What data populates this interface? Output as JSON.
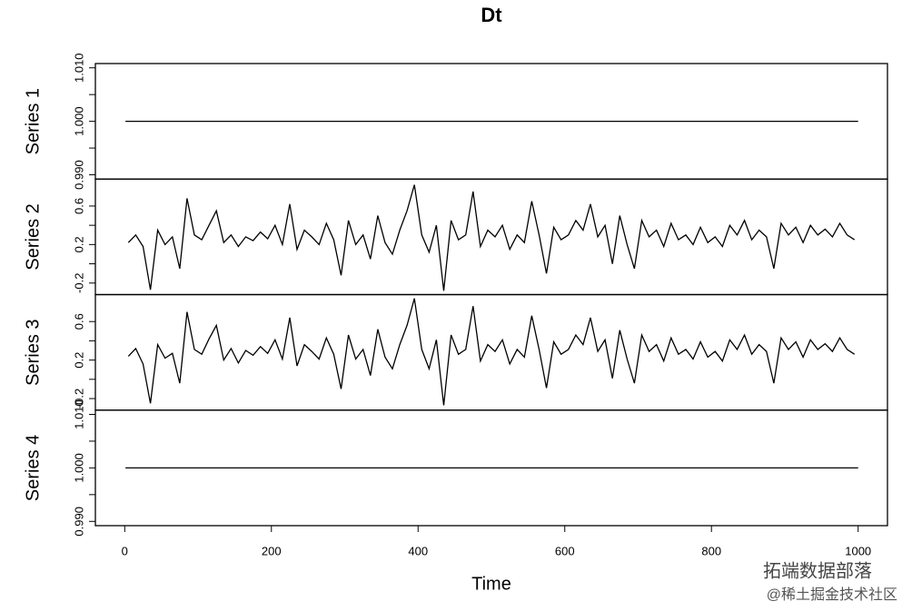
{
  "chart_data": {
    "type": "line",
    "title": "Dt",
    "x_label": "Time",
    "xlim": [
      -40,
      1040
    ],
    "xticks": [
      0,
      200,
      400,
      600,
      800,
      1000
    ],
    "panels": [
      {
        "y_label": "Series 1",
        "color": "#000000",
        "ylim": [
          0.9892,
          1.0108
        ],
        "yticks": [
          {
            "value": 0.99,
            "label": "0.990"
          },
          {
            "value": 1.0,
            "label": "1.000"
          },
          {
            "value": 1.01,
            "label": "1.010"
          }
        ],
        "yminor": [
          0.995,
          1.005
        ],
        "x": [
          1,
          1000
        ],
        "values": [
          1,
          1
        ]
      },
      {
        "y_label": "Series 2",
        "color": "#000000",
        "ylim": [
          -0.32,
          0.88
        ],
        "yticks": [
          -0.2,
          0.2,
          0.6
        ],
        "yminor": [
          0,
          0.4
        ],
        "x": [
          5,
          15,
          25,
          35,
          45,
          55,
          65,
          75,
          85,
          95,
          105,
          115,
          125,
          135,
          145,
          155,
          165,
          175,
          185,
          195,
          205,
          215,
          225,
          235,
          245,
          255,
          265,
          275,
          285,
          295,
          305,
          315,
          325,
          335,
          345,
          355,
          365,
          375,
          385,
          395,
          405,
          415,
          425,
          435,
          445,
          455,
          465,
          475,
          485,
          495,
          505,
          515,
          525,
          535,
          545,
          555,
          565,
          575,
          585,
          595,
          605,
          615,
          625,
          635,
          645,
          655,
          665,
          675,
          685,
          695,
          705,
          715,
          725,
          735,
          745,
          755,
          765,
          775,
          785,
          795,
          805,
          815,
          825,
          835,
          845,
          855,
          865,
          875,
          885,
          895,
          905,
          915,
          925,
          935,
          945,
          955,
          965,
          975,
          985,
          995
        ],
        "values": [
          0.22,
          0.3,
          0.18,
          -0.27,
          0.35,
          0.2,
          0.28,
          -0.05,
          0.68,
          0.3,
          0.25,
          0.4,
          0.55,
          0.22,
          0.3,
          0.18,
          0.28,
          0.24,
          0.33,
          0.26,
          0.4,
          0.2,
          0.62,
          0.15,
          0.35,
          0.28,
          0.2,
          0.42,
          0.25,
          -0.12,
          0.45,
          0.2,
          0.3,
          0.05,
          0.5,
          0.22,
          0.1,
          0.35,
          0.55,
          0.82,
          0.3,
          0.12,
          0.4,
          -0.28,
          0.45,
          0.25,
          0.3,
          0.75,
          0.18,
          0.35,
          0.28,
          0.4,
          0.15,
          0.3,
          0.22,
          0.65,
          0.3,
          -0.1,
          0.38,
          0.25,
          0.3,
          0.45,
          0.35,
          0.62,
          0.28,
          0.4,
          0.0,
          0.5,
          0.2,
          -0.05,
          0.45,
          0.28,
          0.35,
          0.18,
          0.42,
          0.25,
          0.3,
          0.2,
          0.38,
          0.22,
          0.28,
          0.18,
          0.4,
          0.3,
          0.45,
          0.25,
          0.35,
          0.28,
          -0.05,
          0.42,
          0.3,
          0.38,
          0.22,
          0.4,
          0.3,
          0.36,
          0.28,
          0.42,
          0.3,
          0.25
        ]
      },
      {
        "y_label": "Series 3",
        "color": "#000000",
        "ylim": [
          -0.32,
          0.88
        ],
        "yticks": [
          -0.2,
          0.2,
          0.6
        ],
        "yminor": [
          0,
          0.4
        ],
        "x": [
          5,
          15,
          25,
          35,
          45,
          55,
          65,
          75,
          85,
          95,
          105,
          115,
          125,
          135,
          145,
          155,
          165,
          175,
          185,
          195,
          205,
          215,
          225,
          235,
          245,
          255,
          265,
          275,
          285,
          295,
          305,
          315,
          325,
          335,
          345,
          355,
          365,
          375,
          385,
          395,
          405,
          415,
          425,
          435,
          445,
          455,
          465,
          475,
          485,
          495,
          505,
          515,
          525,
          535,
          545,
          555,
          565,
          575,
          585,
          595,
          605,
          615,
          625,
          635,
          645,
          655,
          665,
          675,
          685,
          695,
          705,
          715,
          725,
          735,
          745,
          755,
          765,
          775,
          785,
          795,
          805,
          815,
          825,
          835,
          845,
          855,
          865,
          875,
          885,
          895,
          905,
          915,
          925,
          935,
          945,
          955,
          965,
          975,
          985,
          995
        ],
        "values": [
          0.24,
          0.32,
          0.16,
          -0.25,
          0.36,
          0.22,
          0.27,
          -0.04,
          0.7,
          0.31,
          0.26,
          0.42,
          0.56,
          0.2,
          0.32,
          0.17,
          0.3,
          0.25,
          0.34,
          0.27,
          0.41,
          0.21,
          0.64,
          0.14,
          0.36,
          0.29,
          0.21,
          0.43,
          0.26,
          -0.1,
          0.46,
          0.21,
          0.31,
          0.04,
          0.52,
          0.23,
          0.11,
          0.36,
          0.56,
          0.84,
          0.31,
          0.11,
          0.41,
          -0.27,
          0.46,
          0.26,
          0.31,
          0.76,
          0.19,
          0.36,
          0.29,
          0.41,
          0.16,
          0.31,
          0.23,
          0.66,
          0.31,
          -0.09,
          0.39,
          0.26,
          0.31,
          0.46,
          0.36,
          0.64,
          0.29,
          0.41,
          0.01,
          0.51,
          0.21,
          -0.04,
          0.46,
          0.29,
          0.36,
          0.19,
          0.43,
          0.26,
          0.31,
          0.21,
          0.39,
          0.23,
          0.29,
          0.19,
          0.41,
          0.31,
          0.46,
          0.26,
          0.36,
          0.29,
          -0.04,
          0.43,
          0.31,
          0.39,
          0.23,
          0.41,
          0.31,
          0.37,
          0.29,
          0.43,
          0.31,
          0.26
        ]
      },
      {
        "y_label": "Series 4",
        "color": "#000000",
        "ylim": [
          0.9892,
          1.0108
        ],
        "yticks": [
          {
            "value": 0.99,
            "label": "0.990"
          },
          {
            "value": 1.0,
            "label": "1.000"
          },
          {
            "value": 1.01,
            "label": "1.010"
          }
        ],
        "yminor": [
          0.995,
          1.005
        ],
        "x": [
          1,
          1000
        ],
        "values": [
          1,
          1
        ]
      }
    ]
  },
  "watermark": {
    "line1": "拓端数据部落",
    "line2": "@稀土掘金技术社区"
  }
}
